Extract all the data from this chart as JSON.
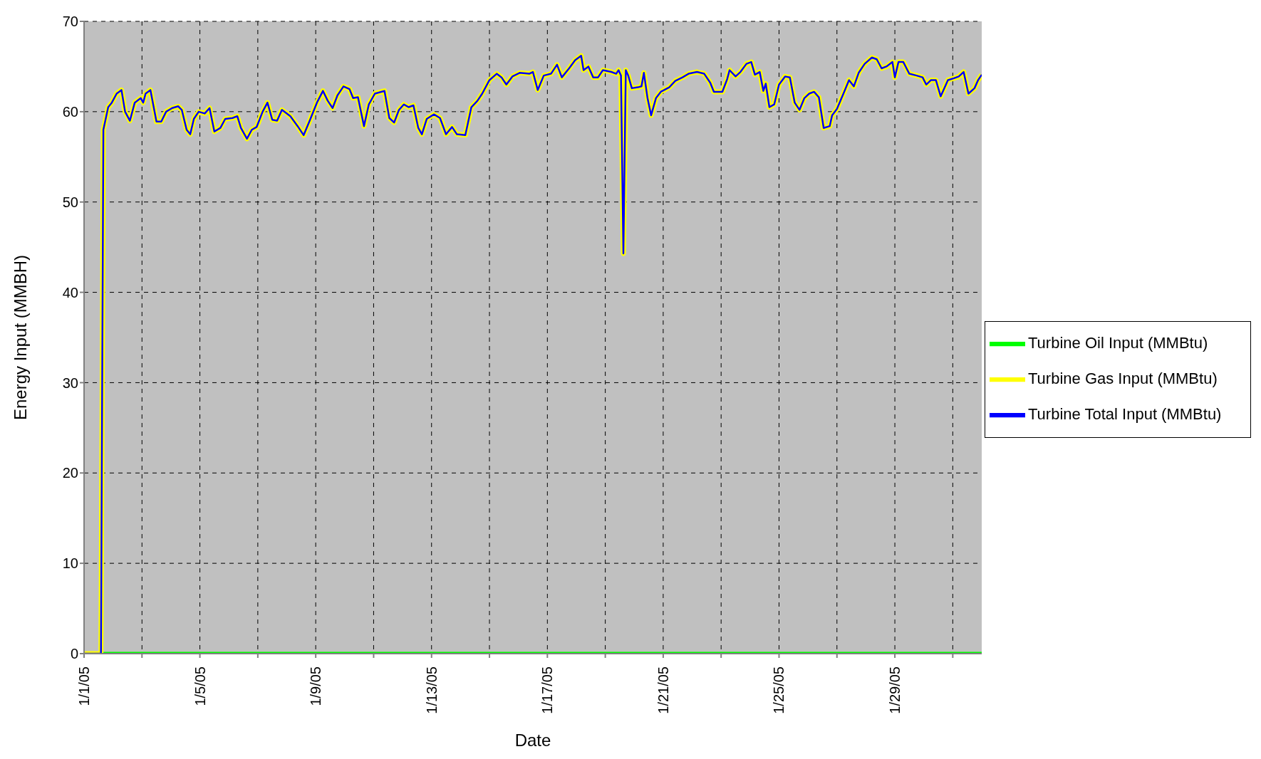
{
  "chart_data": {
    "type": "line",
    "xlabel": "Date",
    "ylabel": "Energy Input (MMBH)",
    "x": [
      "--01-01T00:00",
      "--01-01T14:00",
      "--01-01T16:00",
      "--01-01T20:00",
      "--01-01T23:00",
      "--01-02T03:00",
      "--01-02T07:00",
      "--01-02T10:00",
      "--01-02T14:00",
      "--01-02T18:00",
      "--01-02T23:00",
      "--01-03T01:00",
      "--01-03T03:00",
      "--01-03T07:00",
      "--01-03T12:00",
      "--01-03T16:00",
      "--01-03T20:00",
      "--01-04T01:00",
      "--01-04T06:00",
      "--01-04T09:00",
      "--01-04T13:00",
      "--01-04T16:00",
      "--01-04T19:00",
      "--01-04T23:00",
      "--01-05T04:00",
      "--01-05T08:00",
      "--01-05T12:00",
      "--01-05T17:00",
      "--01-05T21:00",
      "--01-06T03:00",
      "--01-06T07:00",
      "--01-06T10:00",
      "--01-06T15:00",
      "--01-06T19:00",
      "--01-06T23:00",
      "--01-07T04:00",
      "--01-07T08:00",
      "--01-07T12:00",
      "--01-07T16:00",
      "--01-07T20:00",
      "--01-08T03:00",
      "--01-08T09:00",
      "--01-08T14:00",
      "--01-08T19:00",
      "--01-09T01:00",
      "--01-09T06:00",
      "--01-09T10:00",
      "--01-09T14:00",
      "--01-09T18:00",
      "--01-09T23:00",
      "--01-10T04:00",
      "--01-10T07:00",
      "--01-10T11:00",
      "--01-10T16:00",
      "--01-10T20:00",
      "--01-11T01:00",
      "--01-11T09:00",
      "--01-11T13:00",
      "--01-11T17:00",
      "--01-11T21:00",
      "--01-12T01:00",
      "--01-12T05:00",
      "--01-12T09:00",
      "--01-12T13:00",
      "--01-12T16:00",
      "--01-12T20:00",
      "--01-13T02:00",
      "--01-13T07:00",
      "--01-13T12:00",
      "--01-13T17:00",
      "--01-13T21:00",
      "--01-14T04:00",
      "--01-14T09:00",
      "--01-14T14:00",
      "--01-14T18:00",
      "--01-15T00:00",
      "--01-15T06:00",
      "--01-15T10:00",
      "--01-15T14:00",
      "--01-15T19:00",
      "--01-16T01:00",
      "--01-16T09:00",
      "--01-16T12:00",
      "--01-16T16:00",
      "--01-16T21:00",
      "--01-17T03:00",
      "--01-17T08:00",
      "--01-17T12:00",
      "--01-17T18:00",
      "--01-17T23:00",
      "--01-18T04:00",
      "--01-18T06:00",
      "--01-18T10:00",
      "--01-18T14:00",
      "--01-18T18:00",
      "--01-18T22:00",
      "--01-19T05:00",
      "--01-19T09:00",
      "--01-19T11:00",
      "--01-19T13:00",
      "--01-19T15:00",
      "--01-19T17:00",
      "--01-19T19:00",
      "--01-19T22:00",
      "--01-20T03:00",
      "--01-20T06:00",
      "--01-20T08:00",
      "--01-20T11:00",
      "--01-20T14:00",
      "--01-20T18:00",
      "--01-20T22:00",
      "--01-21T05:00",
      "--01-21T10:00",
      "--01-21T16:00",
      "--01-21T21:00",
      "--01-22T04:00",
      "--01-22T10:00",
      "--01-22T15:00",
      "--01-22T18:00",
      "--01-23T01:00",
      "--01-23T05:00",
      "--01-23T07:00",
      "--01-23T12:00",
      "--01-23T16:00",
      "--01-23T21:00",
      "--01-24T01:00",
      "--01-24T04:00",
      "--01-24T08:00",
      "--01-24T11:00",
      "--01-24T13:00",
      "--01-24T16:00",
      "--01-24T20:00",
      "--01-25T00:00",
      "--01-25T05:00",
      "--01-25T09:00",
      "--01-25T13:00",
      "--01-25T17:00",
      "--01-25T21:00",
      "--01-26T01:00",
      "--01-26T05:00",
      "--01-26T09:00",
      "--01-26T13:00",
      "--01-26T18:00",
      "--01-26T20:00",
      "--01-27T00:00",
      "--01-27T06:00",
      "--01-27T10:00",
      "--01-27T14:00",
      "--01-27T18:00",
      "--01-27T23:00",
      "--01-28T05:00",
      "--01-28T09:00",
      "--01-28T13:00",
      "--01-28T17:00",
      "--01-28T22:00",
      "--01-29T00:00",
      "--01-29T03:00",
      "--01-29T07:00",
      "--01-29T12:00",
      "--01-29T18:00",
      "--01-29T23:00",
      "--01-30T02:00",
      "--01-30T06:00",
      "--01-30T10:00",
      "--01-30T14:00",
      "--01-30T20:00",
      "--01-31T01:00",
      "--01-31T05:00",
      "--01-31T09:00",
      "--01-31T13:00",
      "--01-31T18:00",
      "--01-31T21:00",
      "--02-01T00:00"
    ],
    "series": [
      {
        "name": "Turbine Oil Input (MMBtu)",
        "color": "#00ff00",
        "x": [
          "--01-01T00:00",
          "--02-01T00:00"
        ],
        "values": [
          0,
          0
        ]
      },
      {
        "name": "Turbine Gas Input (MMBtu)",
        "color": "#ffff00",
        "values": [
          0,
          0,
          58,
          60.5,
          61,
          62,
          62.4,
          60,
          59,
          61,
          61.5,
          61,
          62,
          62.4,
          58.9,
          58.9,
          60,
          60.4,
          60.6,
          60.2,
          58,
          57.5,
          59.2,
          60,
          59.8,
          60.4,
          57.8,
          58.2,
          59.2,
          59.3,
          59.5,
          58.2,
          57,
          58,
          58.3,
          60,
          61,
          59.1,
          59,
          60.2,
          59.5,
          58.4,
          57.4,
          59,
          61,
          62.3,
          61.2,
          60.4,
          61.8,
          62.8,
          62.5,
          61.5,
          61.6,
          58.4,
          60.8,
          62,
          62.3,
          59.3,
          58.8,
          60.2,
          60.8,
          60.5,
          60.7,
          58.2,
          57.5,
          59.2,
          59.7,
          59.3,
          57.5,
          58.3,
          57.5,
          57.4,
          60.5,
          61.2,
          62,
          63.5,
          64.2,
          63.8,
          63,
          63.9,
          64.3,
          64.2,
          64.4,
          62.4,
          64,
          64.2,
          65.2,
          63.8,
          64.8,
          65.7,
          66.2,
          64.6,
          65,
          63.8,
          63.8,
          64.6,
          64.4,
          64.2,
          64.6,
          64,
          44.3,
          64.6,
          64,
          62.6,
          62.7,
          62.8,
          64.3,
          61.5,
          59.6,
          61.5,
          62.2,
          62.7,
          63.4,
          63.8,
          64.2,
          64.4,
          64.2,
          63.2,
          62.2,
          62.2,
          63.6,
          64.6,
          63.9,
          64.4,
          65.3,
          65.5,
          64.1,
          64.4,
          62.3,
          63.1,
          60.5,
          60.8,
          63,
          63.9,
          63.8,
          61,
          60.2,
          61.5,
          62,
          62.2,
          61.6,
          58.2,
          58.4,
          59.6,
          60.3,
          62.2,
          63.5,
          62.8,
          64.3,
          65.3,
          66,
          65.8,
          64.8,
          65,
          65.5,
          63.8,
          65.5,
          65.5,
          64.2,
          64,
          63.8,
          63,
          63.5,
          63.5,
          61.7,
          63.5,
          63.7,
          63.9,
          64.4,
          62,
          62.6,
          63.5,
          64.1
        ]
      },
      {
        "name": "Turbine Total Input (MMBtu)",
        "color": "#0000ff",
        "values": [
          0,
          0,
          58,
          60.5,
          61,
          62,
          62.4,
          60,
          59,
          61,
          61.5,
          61,
          62,
          62.4,
          58.9,
          58.9,
          60,
          60.4,
          60.6,
          60.2,
          58,
          57.5,
          59.2,
          60,
          59.8,
          60.4,
          57.8,
          58.2,
          59.2,
          59.3,
          59.5,
          58.2,
          57,
          58,
          58.3,
          60,
          61,
          59.1,
          59,
          60.2,
          59.5,
          58.4,
          57.4,
          59,
          61,
          62.3,
          61.2,
          60.4,
          61.8,
          62.8,
          62.5,
          61.5,
          61.6,
          58.4,
          60.8,
          62,
          62.3,
          59.3,
          58.8,
          60.2,
          60.8,
          60.5,
          60.7,
          58.2,
          57.5,
          59.2,
          59.7,
          59.3,
          57.5,
          58.3,
          57.5,
          57.4,
          60.5,
          61.2,
          62,
          63.5,
          64.2,
          63.8,
          63,
          63.9,
          64.3,
          64.2,
          64.4,
          62.4,
          64,
          64.2,
          65.2,
          63.8,
          64.8,
          65.7,
          66.2,
          64.6,
          65,
          63.8,
          63.8,
          64.6,
          64.4,
          64.2,
          64.6,
          64,
          44.3,
          64.6,
          64,
          62.6,
          62.7,
          62.8,
          64.3,
          61.5,
          59.6,
          61.5,
          62.2,
          62.7,
          63.4,
          63.8,
          64.2,
          64.4,
          64.2,
          63.2,
          62.2,
          62.2,
          63.6,
          64.6,
          63.9,
          64.4,
          65.3,
          65.5,
          64.1,
          64.4,
          62.3,
          63.1,
          60.5,
          60.8,
          63,
          63.9,
          63.8,
          61,
          60.2,
          61.5,
          62,
          62.2,
          61.6,
          58.2,
          58.4,
          59.6,
          60.3,
          62.2,
          63.5,
          62.8,
          64.3,
          65.3,
          66,
          65.8,
          64.8,
          65,
          65.5,
          63.8,
          65.5,
          65.5,
          64.2,
          64,
          63.8,
          63,
          63.5,
          63.5,
          61.7,
          63.5,
          63.7,
          63.9,
          64.4,
          62,
          62.6,
          63.5,
          64.1
        ]
      }
    ],
    "xlim": [
      "--01-01",
      "--02-01"
    ],
    "xticks": [
      {
        "value": "--01-01",
        "label": "1/1/05"
      },
      {
        "value": "--01-03",
        "label": null
      },
      {
        "value": "--01-05",
        "label": "1/5/05"
      },
      {
        "value": "--01-07",
        "label": null
      },
      {
        "value": "--01-09",
        "label": "1/9/05"
      },
      {
        "value": "--01-11",
        "label": null
      },
      {
        "value": "--01-13",
        "label": "1/13/05"
      },
      {
        "value": "--01-15",
        "label": null
      },
      {
        "value": "--01-17",
        "label": "1/17/05"
      },
      {
        "value": "--01-19",
        "label": null
      },
      {
        "value": "--01-21",
        "label": "1/21/05"
      },
      {
        "value": "--01-23",
        "label": null
      },
      {
        "value": "--01-25",
        "label": "1/25/05"
      },
      {
        "value": "--01-27",
        "label": null
      },
      {
        "value": "--01-29",
        "label": "1/29/05"
      },
      {
        "value": "--01-31",
        "label": null
      }
    ],
    "ylim": [
      0,
      70
    ],
    "yticks": [
      0,
      10,
      20,
      30,
      40,
      50,
      60,
      70
    ],
    "grid": true,
    "legend": "right",
    "marker": "none",
    "line_style": "solid"
  }
}
